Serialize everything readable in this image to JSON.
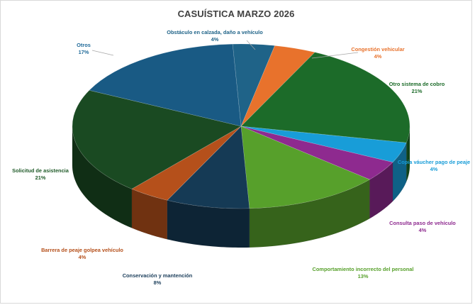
{
  "chart_data": {
    "type": "pie",
    "title": "CASUÍSTICA MARZO 2026",
    "slices": [
      {
        "label": "Obstáculo en calzada, daño a vehículo",
        "value": 4,
        "value_label": "4%",
        "color": "#1f6388"
      },
      {
        "label": "Congestión vehicular",
        "value": 4,
        "value_label": "4%",
        "color": "#e8722c"
      },
      {
        "label": "Otro sistema de cobro",
        "value": 21,
        "value_label": "21%",
        "color": "#1c6b29"
      },
      {
        "label": "Copia váucher pago de peaje",
        "value": 4,
        "value_label": "4%",
        "color": "#189dd8"
      },
      {
        "label": "Consulta paso de vehículo",
        "value": 4,
        "value_label": "4%",
        "color": "#8e2a8f"
      },
      {
        "label": "Comportamiento incorrecto del personal",
        "value": 13,
        "value_label": "13%",
        "color": "#57a02b"
      },
      {
        "label": "Conservación y mantención",
        "value": 8,
        "value_label": "8%",
        "color": "#153a55"
      },
      {
        "label": "Barrera de peaje golpea vehículo",
        "value": 4,
        "value_label": "4%",
        "color": "#b5501b"
      },
      {
        "label": "Solicitud de asistencia",
        "value": 21,
        "value_label": "21%",
        "color": "#1a4a22"
      },
      {
        "label": "Otros",
        "value": 17,
        "value_label": "17%",
        "color": "#195a84"
      }
    ],
    "style": "3d",
    "legend": "none",
    "data_labels": "outside"
  }
}
